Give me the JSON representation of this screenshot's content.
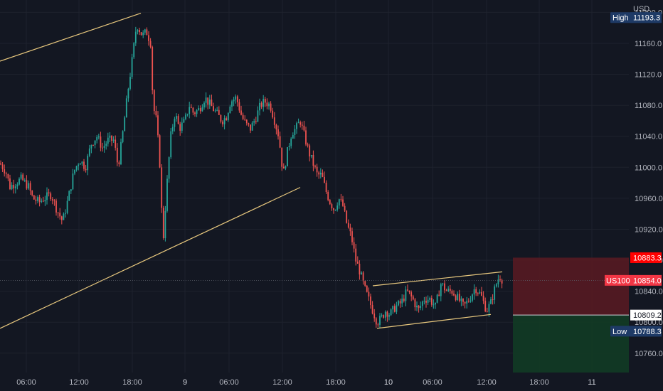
{
  "chart_data": {
    "type": "candlestick",
    "symbol": "US100",
    "currency": "USD",
    "last_price": 10854.0,
    "high": {
      "label": "High",
      "value": 11193.3
    },
    "low": {
      "label": "Low",
      "value": 10788.3
    },
    "entry_price": 10809.2,
    "stop_price": 10883.3,
    "y_ticks": [
      10760,
      10800,
      10840,
      10880,
      10920,
      10960,
      11000,
      11040,
      11080,
      11120,
      11160,
      11200
    ],
    "y_tick_labels": [
      "10760.0",
      "10800.0",
      "10840.0",
      "10880.0",
      "10920.0",
      "10960.0",
      "11000.0",
      "11040.0",
      "11080.0",
      "11120.0",
      "11160.0",
      "11200.0"
    ],
    "x_labels": [
      "06:00",
      "12:00",
      "18:00",
      "9",
      "06:00",
      "12:00",
      "18:00",
      "10",
      "06:00",
      "12:00",
      "18:00",
      "11"
    ],
    "ylim": [
      10735,
      11216
    ],
    "grid": true,
    "colors": {
      "background": "#131722",
      "grid": "#1e222d",
      "up": "#26a69a",
      "down": "#ef5350",
      "trendline": "#e8c87e",
      "stop_zone": "#5b1a22",
      "target_zone": "#123b25",
      "high_low_tag": "#1e3a66",
      "price_tag": "#f23645",
      "stop_tag": "#ff0000",
      "entry_tag": "#ffffff"
    },
    "path_points": [
      [
        0,
        11005
      ],
      [
        8,
        10995
      ],
      [
        14,
        10975
      ],
      [
        22,
        10980
      ],
      [
        30,
        10985
      ],
      [
        40,
        10975
      ],
      [
        46,
        10960
      ],
      [
        55,
        10955
      ],
      [
        62,
        10960
      ],
      [
        72,
        10965
      ],
      [
        80,
        10945
      ],
      [
        88,
        10930
      ],
      [
        96,
        10960
      ],
      [
        104,
        10995
      ],
      [
        112,
        11010
      ],
      [
        120,
        11000
      ],
      [
        128,
        11030
      ],
      [
        136,
        11040
      ],
      [
        144,
        11025
      ],
      [
        152,
        11035
      ],
      [
        160,
        11035
      ],
      [
        166,
        11000
      ],
      [
        172,
        11040
      ],
      [
        180,
        11100
      ],
      [
        186,
        11140
      ],
      [
        192,
        11185
      ],
      [
        200,
        11170
      ],
      [
        206,
        11175
      ],
      [
        212,
        11160
      ],
      [
        215,
        11080
      ],
      [
        220,
        11060
      ],
      [
        225,
        11000
      ],
      [
        229,
        10900
      ],
      [
        234,
        10970
      ],
      [
        240,
        11040
      ],
      [
        246,
        11070
      ],
      [
        252,
        11050
      ],
      [
        260,
        11060
      ],
      [
        266,
        11080
      ],
      [
        272,
        11070
      ],
      [
        280,
        11075
      ],
      [
        288,
        11090
      ],
      [
        296,
        11080
      ],
      [
        304,
        11070
      ],
      [
        312,
        11060
      ],
      [
        318,
        11065
      ],
      [
        324,
        11085
      ],
      [
        332,
        11090
      ],
      [
        340,
        11065
      ],
      [
        346,
        11055
      ],
      [
        352,
        11050
      ],
      [
        360,
        11065
      ],
      [
        366,
        11080
      ],
      [
        372,
        11085
      ],
      [
        380,
        11080
      ],
      [
        386,
        11060
      ],
      [
        392,
        11040
      ],
      [
        398,
        10990
      ],
      [
        404,
        11020
      ],
      [
        410,
        11045
      ],
      [
        416,
        11050
      ],
      [
        422,
        11060
      ],
      [
        428,
        11040
      ],
      [
        434,
        11020
      ],
      [
        440,
        11005
      ],
      [
        446,
        10990
      ],
      [
        452,
        10990
      ],
      [
        458,
        10970
      ],
      [
        464,
        10955
      ],
      [
        470,
        10945
      ],
      [
        476,
        10960
      ],
      [
        482,
        10950
      ],
      [
        488,
        10925
      ],
      [
        494,
        10910
      ],
      [
        500,
        10880
      ],
      [
        506,
        10865
      ],
      [
        512,
        10845
      ],
      [
        518,
        10830
      ],
      [
        524,
        10815
      ],
      [
        530,
        10800
      ],
      [
        536,
        10805
      ],
      [
        542,
        10815
      ],
      [
        548,
        10810
      ],
      [
        556,
        10820
      ],
      [
        564,
        10825
      ],
      [
        572,
        10840
      ],
      [
        580,
        10830
      ],
      [
        588,
        10815
      ],
      [
        596,
        10830
      ],
      [
        604,
        10830
      ],
      [
        612,
        10820
      ],
      [
        620,
        10850
      ],
      [
        628,
        10840
      ],
      [
        636,
        10840
      ],
      [
        644,
        10830
      ],
      [
        652,
        10820
      ],
      [
        660,
        10830
      ],
      [
        668,
        10845
      ],
      [
        676,
        10835
      ],
      [
        684,
        10815
      ],
      [
        690,
        10825
      ],
      [
        696,
        10845
      ],
      [
        702,
        10860
      ],
      [
        707,
        10854
      ]
    ],
    "trendlines": [
      [
        [
          0,
          11137
        ],
        [
          198,
          11199
        ]
      ],
      [
        [
          0,
          10792
        ],
        [
          422,
          10974
        ]
      ],
      [
        [
          524,
          10847
        ],
        [
          706,
          10865
        ]
      ],
      [
        [
          530,
          10792
        ],
        [
          690,
          10810
        ]
      ]
    ]
  }
}
